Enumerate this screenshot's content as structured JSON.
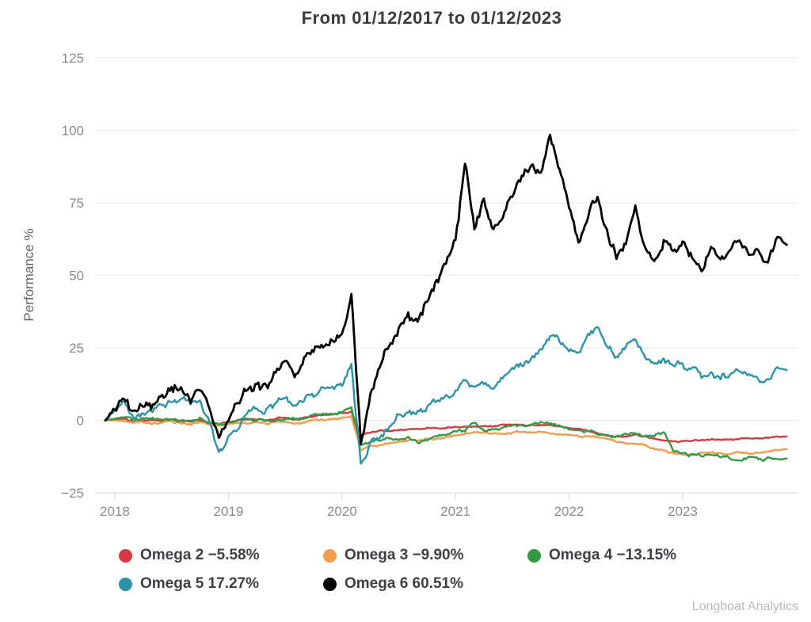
{
  "title": "From 01/12/2017 to 01/12/2023",
  "watermark": "Longboat Analytics",
  "chart_data": {
    "type": "line",
    "title": "From 01/12/2017 to 01/12/2023",
    "xlabel": "",
    "ylabel": "Performance %",
    "ylim": [
      -25,
      125
    ],
    "y_ticks": [
      125,
      100,
      75,
      50,
      25,
      0,
      -25
    ],
    "x_tick_years": [
      "2018",
      "2019",
      "2020",
      "2021",
      "2022",
      "2023"
    ],
    "x_start": "01/12/2017",
    "x_end": "01/12/2023",
    "x_unit": "months since 01/12/2017",
    "grid": true,
    "legend_position": "bottom",
    "series": [
      {
        "name": "Omega 2",
        "legend_label": "Omega 2 −5.58%",
        "final_value_pct": -5.58,
        "color": "#d43b40",
        "line_width": 2.4,
        "jitter": 0.3,
        "monthly_values_pct": [
          0,
          0.5,
          0.5,
          -0.5,
          0,
          0,
          0,
          0.5,
          0,
          -0.5,
          0,
          -1,
          -1.5,
          -0.5,
          0,
          0.5,
          0.5,
          0,
          0.5,
          1,
          0.5,
          1,
          1.5,
          2,
          2,
          2.5,
          3,
          -5,
          -4,
          -3.5,
          -3.5,
          -3,
          -3,
          -3,
          -2.5,
          -2.5,
          -2.5,
          -2,
          -2,
          -2,
          -2,
          -2,
          -1.5,
          -1.5,
          -1.5,
          -1.5,
          -1.5,
          -1.5,
          -2,
          -2.5,
          -3,
          -3.5,
          -4.5,
          -5,
          -5.5,
          -5.5,
          -5,
          -5.5,
          -6.5,
          -7,
          -7.3,
          -7.2,
          -7,
          -7,
          -6.8,
          -6.6,
          -6.5,
          -6.3,
          -6.2,
          -6.1,
          -6,
          -5.8,
          -5.58
        ]
      },
      {
        "name": "Omega 3",
        "legend_label": "Omega 3 −9.90%",
        "final_value_pct": -9.9,
        "color": "#f59b4c",
        "line_width": 2.4,
        "jitter": 0.4,
        "monthly_values_pct": [
          0,
          0,
          -0.5,
          -1,
          -0.5,
          -1,
          -0.5,
          -0.5,
          -1,
          -1.5,
          -1,
          -1.5,
          -2,
          -1.5,
          -1,
          -1,
          -0.5,
          -1,
          -0.5,
          -0.5,
          -1,
          -0.5,
          0,
          0,
          0.5,
          1,
          1.5,
          -10,
          -9,
          -8.5,
          -8,
          -7.5,
          -7,
          -7,
          -6.5,
          -6.5,
          -6,
          -5.5,
          -5,
          -4.5,
          -4.5,
          -4.5,
          -4.5,
          -4.5,
          -4,
          -4,
          -4,
          -4.5,
          -4.5,
          -5,
          -5.5,
          -5.5,
          -6,
          -6.5,
          -7.5,
          -8,
          -8,
          -8.5,
          -10,
          -10.5,
          -11.5,
          -11.5,
          -11.5,
          -11,
          -11,
          -11.5,
          -11.5,
          -11,
          -11.5,
          -11,
          -10.5,
          -10.2,
          -9.9
        ]
      },
      {
        "name": "Omega 4",
        "legend_label": "Omega 4 −13.15%",
        "final_value_pct": -13.15,
        "color": "#339a44",
        "line_width": 2.4,
        "jitter": 0.7,
        "monthly_values_pct": [
          0,
          0.5,
          1,
          0,
          0.5,
          0.5,
          0.5,
          0,
          0,
          -0.5,
          0.5,
          -0.5,
          -1,
          -0.5,
          0,
          0.5,
          0.5,
          0,
          0,
          0.5,
          0.5,
          1,
          1.5,
          2,
          2.5,
          3,
          4.5,
          -9,
          -7,
          -6.5,
          -6,
          -7,
          -6,
          -7.5,
          -6.5,
          -5,
          -4.5,
          -4,
          -3.5,
          -0.5,
          -2.5,
          -3,
          -2.5,
          -2,
          -2,
          -1.5,
          -1,
          -1.5,
          -2,
          -3,
          -3.5,
          -3,
          -4.5,
          -5,
          -5.5,
          -5,
          -4.5,
          -5.5,
          -5,
          -3.5,
          -10.5,
          -11.5,
          -12,
          -12.5,
          -12,
          -12.5,
          -13,
          -13.5,
          -13,
          -13.5,
          -13,
          -13.5,
          -13.15
        ]
      },
      {
        "name": "Omega 5",
        "legend_label": "Omega 5 17.27%",
        "final_value_pct": 17.27,
        "color": "#2b93a7",
        "line_width": 2.4,
        "jitter": 1.5,
        "monthly_values_pct": [
          0,
          3,
          6,
          1,
          2,
          4,
          5,
          6,
          7,
          5,
          7,
          0,
          -12,
          -5,
          -2,
          2,
          5,
          3,
          6,
          8,
          5,
          8,
          9,
          10,
          11,
          13,
          19,
          -16,
          -8,
          -5,
          -2,
          2,
          4,
          3,
          5,
          7,
          8,
          10,
          14,
          11,
          13,
          12,
          15,
          17,
          19,
          22,
          24,
          30,
          27,
          24,
          23,
          29,
          31,
          25,
          22,
          25,
          28,
          22,
          20,
          22,
          19,
          19,
          17,
          15,
          16.5,
          14.5,
          15.5,
          17,
          15.5,
          14.5,
          15,
          18.5,
          17.27
        ]
      },
      {
        "name": "Omega 6",
        "legend_label": "Omega 6 60.51%",
        "final_value_pct": 60.51,
        "color": "#000000",
        "line_width": 2.8,
        "jitter": 2.1,
        "monthly_values_pct": [
          0,
          3,
          6.5,
          1,
          4,
          6,
          8,
          9.5,
          10.5,
          8,
          11,
          3,
          -6,
          2,
          6,
          10,
          14,
          12,
          17,
          19,
          16,
          22,
          24,
          26,
          28,
          31,
          44,
          -8,
          10,
          18,
          25,
          30,
          38,
          35,
          42,
          48,
          55,
          62,
          88,
          66,
          75,
          63,
          70,
          76,
          82,
          88,
          85,
          98,
          85,
          72,
          62,
          70,
          76,
          65,
          56,
          62,
          75,
          60,
          55,
          62,
          57,
          62,
          57,
          52,
          58,
          55,
          59,
          62,
          55,
          57,
          55,
          64,
          60.51
        ]
      }
    ]
  }
}
